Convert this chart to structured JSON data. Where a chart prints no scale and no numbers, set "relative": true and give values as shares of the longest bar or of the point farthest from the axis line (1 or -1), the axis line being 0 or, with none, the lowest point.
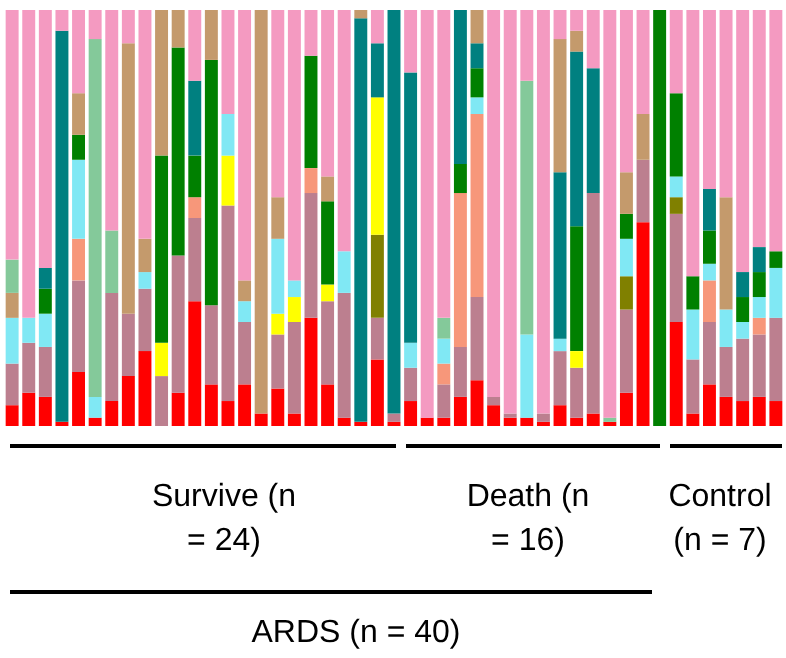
{
  "chart_data": {
    "type": "bar",
    "stacked": true,
    "relative": true,
    "categories": [
      null,
      null,
      null,
      null,
      null,
      null,
      null,
      null,
      null,
      null,
      null,
      null,
      null,
      null,
      null,
      null,
      null,
      null,
      null,
      null,
      null,
      null,
      null,
      null,
      null,
      null,
      null,
      null,
      null,
      null,
      null,
      null,
      null,
      null,
      null,
      null,
      null,
      null,
      null,
      null,
      null,
      null,
      null,
      null,
      null,
      null,
      null
    ],
    "series": [
      {
        "color": "#ff0000",
        "values": [
          0.05,
          0.08,
          0.07,
          0.01,
          0.13,
          0.02,
          0.06,
          0.12,
          0.18,
          0,
          0.08,
          0.3,
          0.1,
          0.06,
          0.1,
          0.03,
          0.09,
          0.03,
          0.26,
          0.1,
          0.02,
          0.01,
          0.16,
          0.01,
          0.06,
          0.02,
          0.02,
          0.07,
          0.11,
          0.05,
          0.02,
          0.02,
          0.01,
          0.05,
          0.02,
          0.03,
          0.01,
          0.08,
          0.49,
          0,
          0.25,
          0.03,
          0.1,
          0.07,
          0.06,
          0.07,
          0.06
        ]
      },
      {
        "color": "#bc7f8f",
        "values": [
          0.1,
          0.12,
          0.12,
          0,
          0.22,
          0,
          0.26,
          0.15,
          0.15,
          0.12,
          0.33,
          0.2,
          0.19,
          0.47,
          0.15,
          0,
          0.13,
          0.22,
          0.3,
          0.2,
          0.3,
          0,
          0.1,
          0.02,
          0.08,
          0,
          0.08,
          0.12,
          0.2,
          0.02,
          0.01,
          0,
          0.02,
          0.13,
          0.12,
          0.53,
          0,
          0.2,
          0.15,
          0,
          0.26,
          0.13,
          0.15,
          0.12,
          0.15,
          0.15,
          0.2
        ]
      },
      {
        "color": "#f7977a",
        "values": [
          0,
          0,
          0,
          0,
          0.1,
          0,
          0,
          0,
          0,
          0,
          0,
          0.05,
          0,
          0,
          0,
          0,
          0,
          0,
          0.06,
          0,
          0,
          0,
          0,
          0,
          0,
          0,
          0.05,
          0.37,
          0.44,
          0,
          0,
          0,
          0,
          0,
          0,
          0,
          0,
          0,
          0,
          0,
          0,
          0,
          0.1,
          0,
          0,
          0.04,
          0
        ]
      },
      {
        "color": "#808000",
        "values": [
          0,
          0,
          0,
          0,
          0,
          0,
          0,
          0,
          0,
          0,
          0,
          0,
          0,
          0,
          0,
          0,
          0,
          0,
          0,
          0,
          0,
          0,
          0.2,
          0,
          0,
          0,
          0,
          0,
          0,
          0,
          0,
          0,
          0,
          0,
          0,
          0,
          0,
          0.08,
          0,
          0,
          0.04,
          0,
          0,
          0,
          0,
          0,
          0
        ]
      },
      {
        "color": "#ffff00",
        "values": [
          0,
          0,
          0,
          0,
          0,
          0,
          0,
          0,
          0,
          0.08,
          0,
          0,
          0,
          0.12,
          0,
          0,
          0.05,
          0.06,
          0,
          0.04,
          0,
          0,
          0.33,
          0,
          0,
          0,
          0,
          0,
          0,
          0,
          0,
          0,
          0,
          0,
          0.04,
          0,
          0,
          0,
          0,
          0,
          0,
          0,
          0,
          0,
          0,
          0,
          0
        ]
      },
      {
        "color": "#80e8f4",
        "values": [
          0.11,
          0.06,
          0.08,
          0,
          0.19,
          0.05,
          0,
          0,
          0.04,
          0,
          0,
          0,
          0,
          0.1,
          0.05,
          0,
          0.18,
          0.04,
          0,
          0,
          0.1,
          0,
          0,
          0,
          0.06,
          0,
          0.06,
          0,
          0.04,
          0,
          0,
          0.2,
          0,
          0.03,
          0,
          0,
          0,
          0.09,
          0,
          0,
          0.05,
          0.12,
          0.04,
          0.09,
          0.04,
          0.05,
          0.12
        ]
      },
      {
        "color": "#008000",
        "values": [
          0,
          0,
          0.06,
          0,
          0.06,
          0,
          0,
          0,
          0,
          0.45,
          0.5,
          0.1,
          0.59,
          0,
          0,
          0,
          0,
          0,
          0.27,
          0.2,
          0,
          0,
          0,
          0,
          0,
          0,
          0,
          0.07,
          0.07,
          0,
          0,
          0,
          0,
          0,
          0.3,
          0,
          0,
          0.06,
          0,
          1,
          0.2,
          0.08,
          0.08,
          0,
          0.06,
          0.06,
          0.04
        ]
      },
      {
        "color": "#008080",
        "values": [
          0,
          0,
          0.05,
          0.94,
          0,
          0,
          0,
          0,
          0,
          0,
          0,
          0.18,
          0,
          0,
          0,
          0,
          0,
          0,
          0,
          0,
          0,
          0.97,
          0.13,
          0.97,
          0.65,
          0,
          0,
          0.37,
          0.06,
          0,
          0,
          0,
          0,
          0.4,
          0.42,
          0.3,
          0,
          0,
          0,
          0,
          0,
          0,
          0.1,
          0,
          0.06,
          0.06,
          0
        ]
      },
      {
        "color": "#c49a6c",
        "values": [
          0.06,
          0,
          0,
          0,
          0.1,
          0,
          0,
          0.65,
          0.08,
          0.35,
          0.09,
          0,
          0.12,
          0,
          0.05,
          0.97,
          0.1,
          0,
          0,
          0.06,
          0,
          0.02,
          0,
          0,
          0,
          0,
          0,
          0,
          0.08,
          0,
          0,
          0,
          0,
          0.32,
          0.05,
          0,
          0,
          0.1,
          0.11,
          0,
          0,
          0,
          0,
          0.27,
          0,
          0,
          0
        ]
      },
      {
        "color": "#84c99a",
        "values": [
          0.08,
          0,
          0,
          0,
          0,
          0.86,
          0.15,
          0,
          0,
          0,
          0,
          0,
          0,
          0,
          0,
          0,
          0,
          0,
          0,
          0,
          0,
          0,
          0,
          0,
          0,
          0,
          0.05,
          0,
          0,
          0,
          0,
          0.61,
          0,
          0,
          0,
          0,
          0.01,
          0,
          0,
          0,
          0,
          0,
          0,
          0,
          0,
          0,
          0
        ]
      },
      {
        "color": "#f49ac1",
        "values": [
          0.6,
          0.74,
          0.62,
          0.05,
          0.2,
          0.07,
          0.53,
          0.08,
          0.55,
          0,
          0,
          0.17,
          0,
          0.25,
          0.65,
          0,
          0.45,
          0.65,
          0.11,
          0.4,
          0.58,
          0,
          0.08,
          0,
          0.15,
          0.98,
          0.74,
          0,
          0,
          0.93,
          0.97,
          0.17,
          0.97,
          0.07,
          0.05,
          0.14,
          0.98,
          0.39,
          0.25,
          0,
          0.2,
          0.64,
          0.43,
          0.45,
          0.63,
          0.57,
          0.58
        ]
      }
    ],
    "annotations": [
      "Survive (n = 24)",
      "Death (n = 16)",
      "Control (n = 7)",
      "ARDS (n = 40)"
    ]
  }
}
